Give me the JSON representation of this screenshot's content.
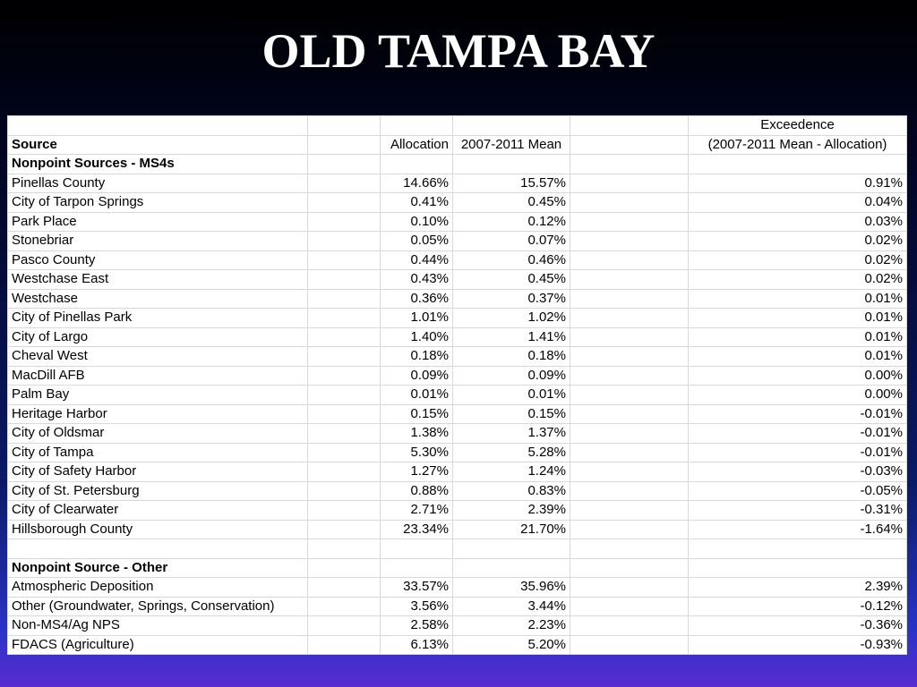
{
  "title": "OLD TAMPA BAY",
  "table": {
    "header": {
      "source": "Source",
      "allocation": "Allocation",
      "mean": "2007-2011 Mean",
      "exceedence": [
        "Exceedence",
        "(2007-2011 Mean - Allocation)"
      ]
    },
    "sections": [
      {
        "title": "Nonpoint Sources - MS4s",
        "rows": [
          [
            "Pinellas County",
            "14.66%",
            "15.57%",
            "0.91%"
          ],
          [
            "City of Tarpon Springs",
            "0.41%",
            "0.45%",
            "0.04%"
          ],
          [
            "Park Place",
            "0.10%",
            "0.12%",
            "0.03%"
          ],
          [
            "Stonebriar",
            "0.05%",
            "0.07%",
            "0.02%"
          ],
          [
            "Pasco County",
            "0.44%",
            "0.46%",
            "0.02%"
          ],
          [
            "Westchase East",
            "0.43%",
            "0.45%",
            "0.02%"
          ],
          [
            "Westchase",
            "0.36%",
            "0.37%",
            "0.01%"
          ],
          [
            "City of Pinellas Park",
            "1.01%",
            "1.02%",
            "0.01%"
          ],
          [
            "City of Largo",
            "1.40%",
            "1.41%",
            "0.01%"
          ],
          [
            "Cheval West",
            "0.18%",
            "0.18%",
            "0.01%"
          ],
          [
            "MacDill AFB",
            "0.09%",
            "0.09%",
            "0.00%"
          ],
          [
            "Palm Bay",
            "0.01%",
            "0.01%",
            "0.00%"
          ],
          [
            "Heritage Harbor",
            "0.15%",
            "0.15%",
            "-0.01%"
          ],
          [
            "City of Oldsmar",
            "1.38%",
            "1.37%",
            "-0.01%"
          ],
          [
            "City of Tampa",
            "5.30%",
            "5.28%",
            "-0.01%"
          ],
          [
            "City of Safety Harbor",
            "1.27%",
            "1.24%",
            "-0.03%"
          ],
          [
            "City of St. Petersburg",
            "0.88%",
            "0.83%",
            "-0.05%"
          ],
          [
            "City of Clearwater",
            "2.71%",
            "2.39%",
            "-0.31%"
          ],
          [
            "Hillsborough County",
            "23.34%",
            "21.70%",
            "-1.64%"
          ]
        ]
      },
      {
        "title": "Nonpoint Source - Other",
        "rows": [
          [
            "Atmospheric Deposition",
            "33.57%",
            "35.96%",
            "2.39%"
          ],
          [
            "Other (Groundwater, Springs, Conservation)",
            "3.56%",
            "3.44%",
            "-0.12%"
          ],
          [
            "Non-MS4/Ag NPS",
            "2.58%",
            "2.23%",
            "-0.36%"
          ],
          [
            "FDACS (Agriculture)",
            "6.13%",
            "5.20%",
            "-0.93%"
          ]
        ]
      }
    ]
  }
}
